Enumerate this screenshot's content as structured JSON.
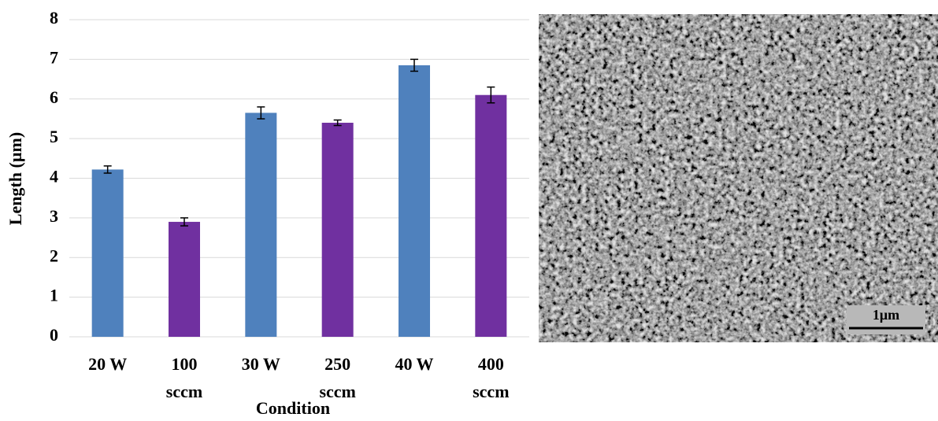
{
  "chart_data": {
    "type": "bar",
    "categories": [
      "20 W",
      "100 sccm",
      "30 W",
      "250 sccm",
      "40 W",
      "400 sccm"
    ],
    "values": [
      4.22,
      2.9,
      5.65,
      5.4,
      6.85,
      6.1
    ],
    "errors": [
      0.09,
      0.1,
      0.15,
      0.07,
      0.15,
      0.2
    ],
    "colors": [
      "#4f81bd",
      "#7030a0",
      "#4f81bd",
      "#7030a0",
      "#4f81bd",
      "#7030a0"
    ],
    "ylim": [
      0,
      8
    ],
    "yticks": [
      0,
      1,
      2,
      3,
      4,
      5,
      6,
      7,
      8
    ],
    "grid": true,
    "ylabel": "Length (µm)",
    "xlabel": "Condition"
  },
  "image": {
    "scale_bar": "1μm"
  }
}
